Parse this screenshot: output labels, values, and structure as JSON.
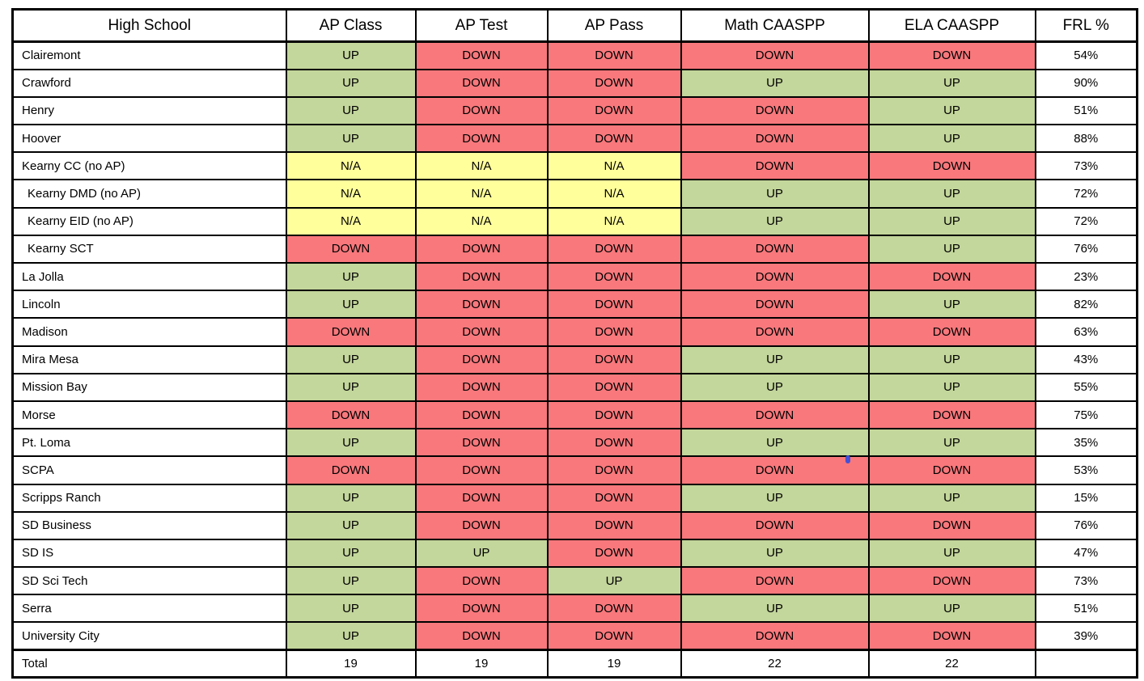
{
  "table": {
    "columns": [
      {
        "key": "school",
        "label": "High School"
      },
      {
        "key": "ap_class",
        "label": "AP Class"
      },
      {
        "key": "ap_test",
        "label": "AP Test"
      },
      {
        "key": "ap_pass",
        "label": "AP Pass"
      },
      {
        "key": "math_caaspp",
        "label": "Math CAASPP"
      },
      {
        "key": "ela_caaspp",
        "label": "ELA CAASPP"
      },
      {
        "key": "frl",
        "label": "FRL %"
      }
    ],
    "status_colors": {
      "UP": "#c3d69b",
      "DOWN": "#f8787c",
      "N/A": "#ffff9b"
    },
    "rows": [
      {
        "school": "Clairemont",
        "indent": false,
        "values": [
          "UP",
          "DOWN",
          "DOWN",
          "DOWN",
          "DOWN"
        ],
        "frl": "54%"
      },
      {
        "school": "Crawford",
        "indent": false,
        "values": [
          "UP",
          "DOWN",
          "DOWN",
          "UP",
          "UP"
        ],
        "frl": "90%"
      },
      {
        "school": "Henry",
        "indent": false,
        "values": [
          "UP",
          "DOWN",
          "DOWN",
          "DOWN",
          "UP"
        ],
        "frl": "51%"
      },
      {
        "school": "Hoover",
        "indent": false,
        "values": [
          "UP",
          "DOWN",
          "DOWN",
          "DOWN",
          "UP"
        ],
        "frl": "88%"
      },
      {
        "school": "Kearny CC (no AP)",
        "indent": false,
        "values": [
          "N/A",
          "N/A",
          "N/A",
          "DOWN",
          "DOWN"
        ],
        "frl": "73%"
      },
      {
        "school": "Kearny DMD (no AP)",
        "indent": true,
        "values": [
          "N/A",
          "N/A",
          "N/A",
          "UP",
          "UP"
        ],
        "frl": "72%"
      },
      {
        "school": "Kearny EID (no AP)",
        "indent": true,
        "values": [
          "N/A",
          "N/A",
          "N/A",
          "UP",
          "UP"
        ],
        "frl": "72%"
      },
      {
        "school": "Kearny SCT",
        "indent": true,
        "values": [
          "DOWN",
          "DOWN",
          "DOWN",
          "DOWN",
          "UP"
        ],
        "frl": "76%"
      },
      {
        "school": "La Jolla",
        "indent": false,
        "values": [
          "UP",
          "DOWN",
          "DOWN",
          "DOWN",
          "DOWN"
        ],
        "frl": "23%"
      },
      {
        "school": "Lincoln",
        "indent": false,
        "values": [
          "UP",
          "DOWN",
          "DOWN",
          "DOWN",
          "UP"
        ],
        "frl": "82%"
      },
      {
        "school": "Madison",
        "indent": false,
        "values": [
          "DOWN",
          "DOWN",
          "DOWN",
          "DOWN",
          "DOWN"
        ],
        "frl": "63%"
      },
      {
        "school": "Mira Mesa",
        "indent": false,
        "values": [
          "UP",
          "DOWN",
          "DOWN",
          "UP",
          "UP"
        ],
        "frl": "43%"
      },
      {
        "school": "Mission Bay",
        "indent": false,
        "values": [
          "UP",
          "DOWN",
          "DOWN",
          "UP",
          "UP"
        ],
        "frl": "55%"
      },
      {
        "school": "Morse",
        "indent": false,
        "values": [
          "DOWN",
          "DOWN",
          "DOWN",
          "DOWN",
          "DOWN"
        ],
        "frl": "75%"
      },
      {
        "school": "Pt. Loma",
        "indent": false,
        "values": [
          "UP",
          "DOWN",
          "DOWN",
          "UP",
          "UP"
        ],
        "frl": "35%"
      },
      {
        "school": "SCPA",
        "indent": false,
        "values": [
          "DOWN",
          "DOWN",
          "DOWN",
          "DOWN",
          "DOWN"
        ],
        "frl": "53%"
      },
      {
        "school": "Scripps Ranch",
        "indent": false,
        "values": [
          "UP",
          "DOWN",
          "DOWN",
          "UP",
          "UP"
        ],
        "frl": "15%"
      },
      {
        "school": "SD Business",
        "indent": false,
        "values": [
          "UP",
          "DOWN",
          "DOWN",
          "DOWN",
          "DOWN"
        ],
        "frl": "76%"
      },
      {
        "school": "SD IS",
        "indent": false,
        "values": [
          "UP",
          "UP",
          "DOWN",
          "UP",
          "UP"
        ],
        "frl": "47%"
      },
      {
        "school": "SD Sci Tech",
        "indent": false,
        "values": [
          "UP",
          "DOWN",
          "UP",
          "DOWN",
          "DOWN"
        ],
        "frl": "73%"
      },
      {
        "school": "Serra",
        "indent": false,
        "values": [
          "UP",
          "DOWN",
          "DOWN",
          "UP",
          "UP"
        ],
        "frl": "51%"
      },
      {
        "school": "University City",
        "indent": false,
        "values": [
          "UP",
          "DOWN",
          "DOWN",
          "DOWN",
          "DOWN"
        ],
        "frl": "39%"
      }
    ],
    "total_row": {
      "label": "Total",
      "values": [
        "19",
        "19",
        "19",
        "22",
        "22"
      ],
      "frl": ""
    }
  },
  "annotation": {
    "dot_color": "#4450d8"
  }
}
